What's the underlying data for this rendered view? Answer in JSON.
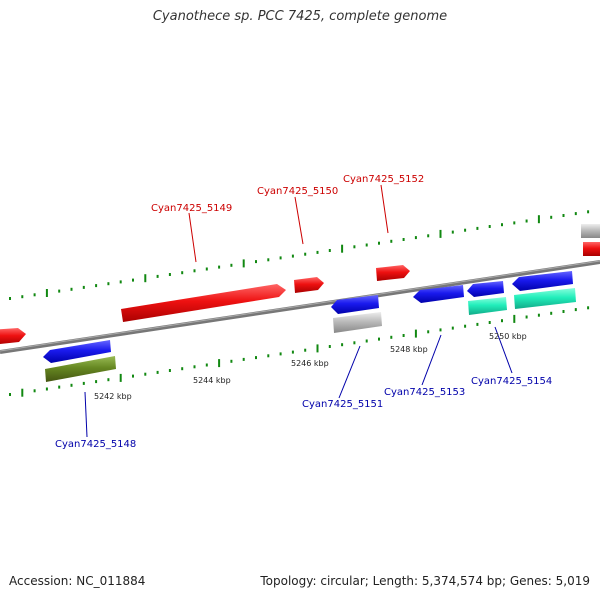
{
  "title": "Cyanothece sp. PCC 7425, complete genome",
  "footer": {
    "accession": "Accession: NC_011884",
    "summary": "Topology: circular; Length: 5,374,574 bp; Genes: 5,019"
  },
  "colors": {
    "forward_label": "#cc0000",
    "reverse_label": "#0000aa",
    "red": "#ee1111",
    "blue": "#1a1aee",
    "grey": "#bbbbbb",
    "olive": "#668822",
    "teal": "#22eebb",
    "backbone": "#888888",
    "tick": "#118811"
  },
  "scale_labels": [
    "5242 kbp",
    "5244 kbp",
    "5246 kbp",
    "5248 kbp",
    "5250 kbp"
  ],
  "gene_labels": {
    "forward": [
      "Cyan7425_5149",
      "Cyan7425_5150",
      "Cyan7425_5152"
    ],
    "reverse": [
      "Cyan7425_5148",
      "Cyan7425_5151",
      "Cyan7425_5153",
      "Cyan7425_5154"
    ]
  }
}
